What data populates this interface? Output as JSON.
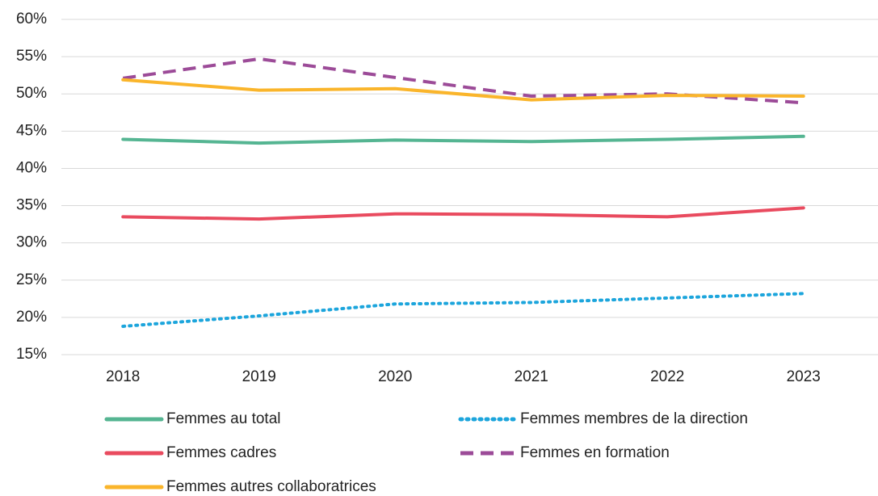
{
  "chart_data": {
    "type": "line",
    "categories": [
      "2018",
      "2019",
      "2020",
      "2021",
      "2022",
      "2023"
    ],
    "series": [
      {
        "name": "Femmes au total",
        "color": "#55b592",
        "dash": "solid",
        "values": [
          43.9,
          43.4,
          43.8,
          43.6,
          43.9,
          44.3
        ]
      },
      {
        "name": "Femmes membres de la direction",
        "color": "#1ca5dc",
        "dash": "dotted",
        "values": [
          18.8,
          20.2,
          21.8,
          22.0,
          22.6,
          23.2
        ]
      },
      {
        "name": "Femmes cadres",
        "color": "#e94b5f",
        "dash": "solid",
        "values": [
          33.5,
          33.2,
          33.9,
          33.8,
          33.5,
          34.7
        ]
      },
      {
        "name": "Femmes en formation",
        "color": "#9c4b98",
        "dash": "dashed",
        "values": [
          52.1,
          54.7,
          52.2,
          49.7,
          50.0,
          48.8
        ]
      },
      {
        "name": "Femmes autres collaboratrices",
        "color": "#fab52b",
        "dash": "solid",
        "values": [
          51.9,
          50.5,
          50.7,
          49.2,
          49.8,
          49.7
        ]
      }
    ],
    "ylim": [
      15,
      60
    ],
    "yticks": [
      {
        "value": 15,
        "label": "15%"
      },
      {
        "value": 20,
        "label": "20%"
      },
      {
        "value": 25,
        "label": "25%"
      },
      {
        "value": 30,
        "label": "30%"
      },
      {
        "value": 35,
        "label": "35%"
      },
      {
        "value": 40,
        "label": "40%"
      },
      {
        "value": 45,
        "label": "45%"
      },
      {
        "value": 50,
        "label": "50%"
      },
      {
        "value": 55,
        "label": "55%"
      },
      {
        "value": 60,
        "label": "60%"
      }
    ],
    "grid": true
  }
}
